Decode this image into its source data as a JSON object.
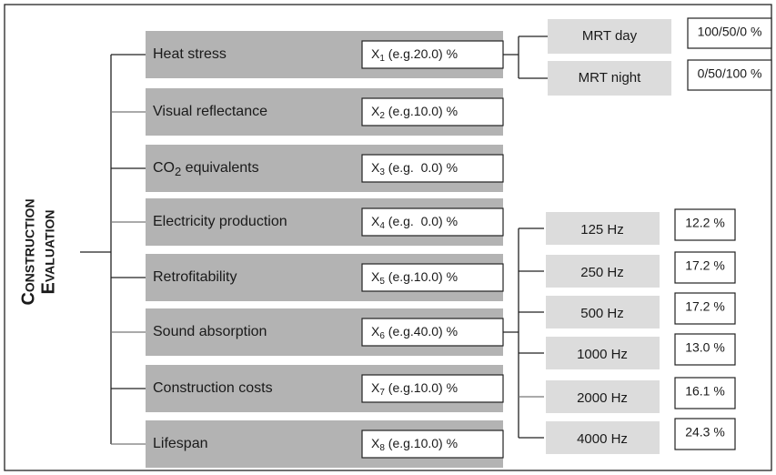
{
  "root": {
    "lines": [
      "Construction",
      "Evaluation"
    ]
  },
  "criteria": [
    {
      "label": {
        "text": "Heat stress"
      },
      "weight": {
        "var": "X",
        "sub": "1",
        "text": " (e.g.20.0) %"
      }
    },
    {
      "label": {
        "text": "Visual reflectance"
      },
      "weight": {
        "var": "X",
        "sub": "2",
        "text": " (e.g.10.0) %"
      }
    },
    {
      "label": {
        "text": "CO",
        "sub": "2",
        "rest": " equivalents"
      },
      "weight": {
        "var": "X",
        "sub": "3",
        "text": " (e.g.  0.0) %"
      }
    },
    {
      "label": {
        "text": "Electricity production"
      },
      "weight": {
        "var": "X",
        "sub": "4",
        "text": " (e.g.  0.0) %"
      }
    },
    {
      "label": {
        "text": "Retrofitability"
      },
      "weight": {
        "var": "X",
        "sub": "5",
        "text": " (e.g.10.0) %"
      }
    },
    {
      "label": {
        "text": "Sound absorption"
      },
      "weight": {
        "var": "X",
        "sub": "6",
        "text": " (e.g.40.0) %"
      }
    },
    {
      "label": {
        "text": "Construction costs"
      },
      "weight": {
        "var": "X",
        "sub": "7",
        "text": " (e.g.10.0) %"
      }
    },
    {
      "label": {
        "text": "Lifespan"
      },
      "weight": {
        "var": "X",
        "sub": "8",
        "text": " (e.g.10.0) %"
      }
    }
  ],
  "heat_sub": [
    {
      "label": "MRT day",
      "value": "100/50/0 %"
    },
    {
      "label": "MRT night",
      "value": "0/50/100 %"
    }
  ],
  "sound_sub": [
    {
      "label": "125 Hz",
      "value": "12.2 %"
    },
    {
      "label": "250 Hz",
      "value": "17.2 %"
    },
    {
      "label": "500 Hz",
      "value": "17.2 %"
    },
    {
      "label": "1000 Hz",
      "value": "13.0 %"
    },
    {
      "label": "2000 Hz",
      "value": "16.1 %"
    },
    {
      "label": "4000 Hz",
      "value": "24.3 %"
    }
  ]
}
